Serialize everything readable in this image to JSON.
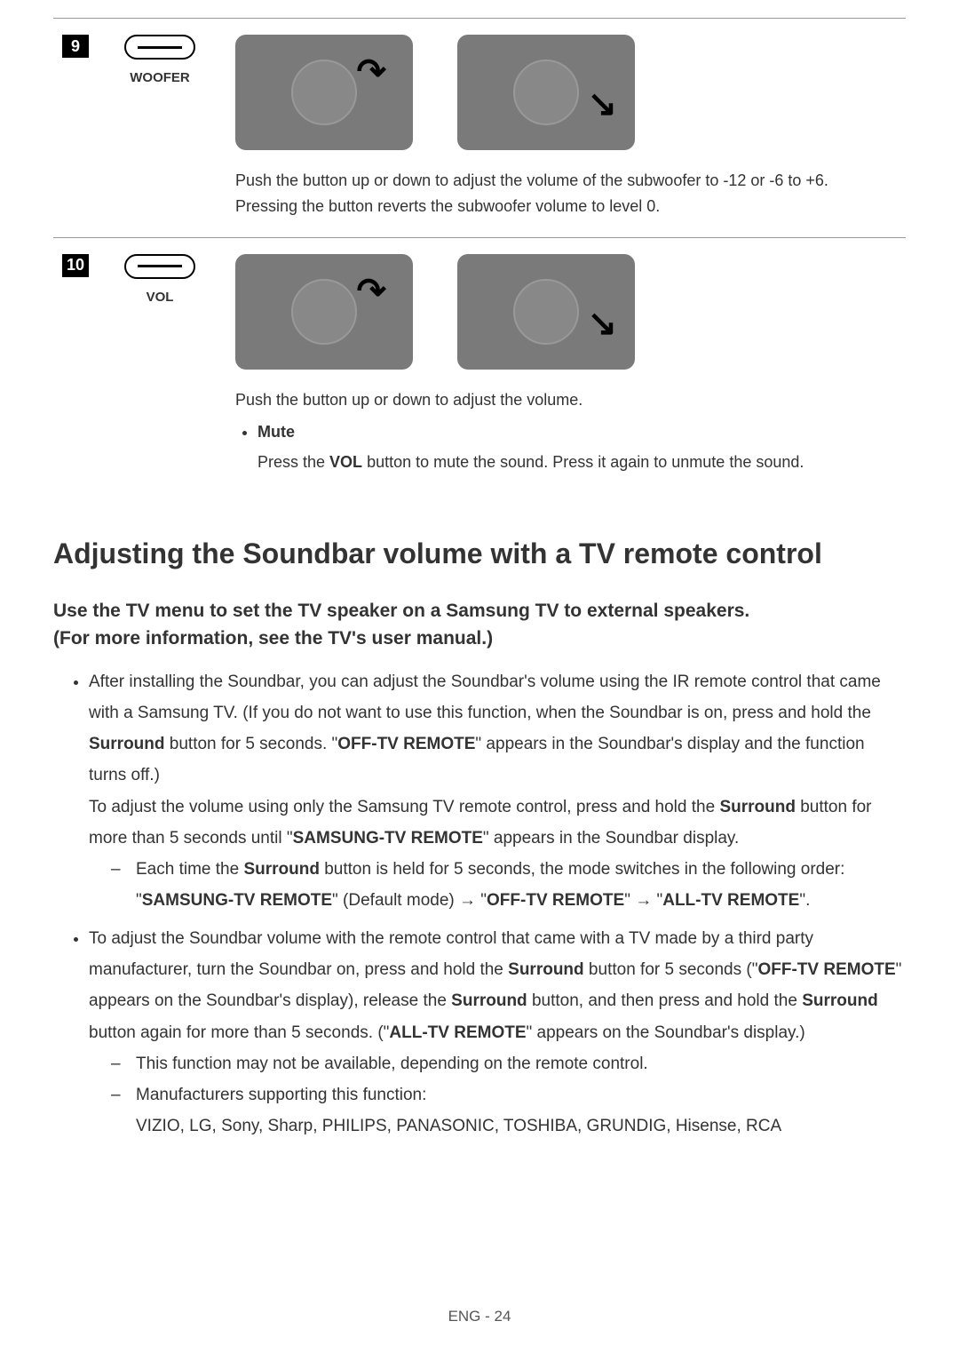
{
  "rows": [
    {
      "num": "9",
      "label": "WOOFER",
      "description": "Push the button up or down to adjust the volume of the subwoofer to -12 or -6 to +6. Pressing the button reverts the subwoofer volume to level 0."
    },
    {
      "num": "10",
      "label": "VOL",
      "description": "Push the button up or down to adjust the volume.",
      "bullet_title": "Mute",
      "bullet_text_pre": "Press the ",
      "bullet_bold": "VOL",
      "bullet_text_post": " button to mute the sound. Press it again to unmute the sound."
    }
  ],
  "section_title": "Adjusting the Soundbar volume with a TV remote control",
  "subsection_line1": "Use the TV menu to set the TV speaker on a Samsung TV to external speakers.",
  "subsection_line2": "(For more information, see the TV's user manual.)",
  "item1": {
    "p1_a": "After installing the Soundbar, you can adjust the Soundbar's volume using the IR remote control that came with a Samsung TV. (If you do not want to use this function, when the Soundbar is on, press and hold the ",
    "p1_b1": "Surround",
    "p1_c": " button for 5 seconds. \"",
    "p1_b2": "OFF-TV REMOTE",
    "p1_d": "\" appears in the Soundbar's display and the function turns off.)",
    "p2_a": "To adjust the volume using only the Samsung TV remote control, press and hold the ",
    "p2_b1": "Surround",
    "p2_c": " button for more than 5 seconds until \"",
    "p2_b2": "SAMSUNG-TV REMOTE",
    "p2_d": "\" appears in the Soundbar display.",
    "dash1_a": "Each time the ",
    "dash1_b1": "Surround",
    "dash1_c": " button is held for 5 seconds, the mode switches in the following order: \"",
    "dash1_b2": "SAMSUNG-TV REMOTE",
    "dash1_d": "\" (Default mode) → \"",
    "dash1_b3": "OFF-TV REMOTE",
    "dash1_e": "\" → \"",
    "dash1_b4": "ALL-TV REMOTE",
    "dash1_f": "\"."
  },
  "item2": {
    "p1_a": "To adjust the Soundbar volume with the remote control that came with a TV made by a third party manufacturer, turn the Soundbar on, press and hold the ",
    "p1_b1": "Surround",
    "p1_c": " button for 5 seconds (\"",
    "p1_b2": "OFF-TV REMOTE",
    "p1_d": "\" appears on the Soundbar's display), release the ",
    "p1_b3": "Surround",
    "p1_e": " button, and then press and hold the ",
    "p1_b4": "Surround",
    "p1_f": " button again for more than 5 seconds. (\"",
    "p1_b5": "ALL-TV REMOTE",
    "p1_g": "\" appears on the Soundbar's display.)",
    "dash1": "This function may not be available, depending on the remote control.",
    "dash2_label": "Manufacturers supporting this function:",
    "dash2_list": "VIZIO, LG, Sony, Sharp, PHILIPS, PANASONIC, TOSHIBA, GRUNDIG, Hisense, RCA"
  },
  "footer": "ENG - 24"
}
